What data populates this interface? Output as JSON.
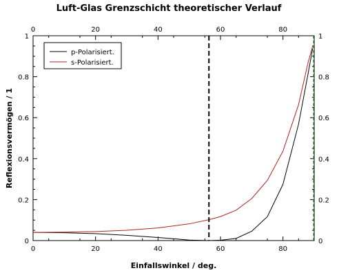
{
  "chart_data": {
    "type": "line",
    "title": "Luft-Glas Grenzschicht theoretischer Verlauf",
    "xlabel": "Einfallswinkel / deg.",
    "ylabel": "Reflexionsvermögen / 1",
    "xlim": [
      0,
      90
    ],
    "ylim": [
      0,
      1
    ],
    "x_ticks": [
      "0",
      "20",
      "40",
      "60",
      "80"
    ],
    "x_tick_values": [
      0,
      20,
      40,
      60,
      80
    ],
    "y_ticks": [
      "0",
      "0.2",
      "0.4",
      "0.6",
      "0.8",
      "1"
    ],
    "y_tick_values": [
      0,
      0.2,
      0.4,
      0.6,
      0.8,
      1
    ],
    "grid": false,
    "legend_position": "top-left",
    "x": [
      0,
      10,
      20,
      30,
      40,
      50,
      56.3,
      60,
      65,
      70,
      75,
      80,
      85,
      88,
      89.5
    ],
    "series": [
      {
        "name": "p-Polarisiert.",
        "color": "#000000",
        "values": [
          0.04,
          0.0383,
          0.0338,
          0.0254,
          0.0151,
          0.0027,
          0.0,
          0.0017,
          0.0105,
          0.0454,
          0.1167,
          0.2747,
          0.569,
          0.8113,
          0.937
        ]
      },
      {
        "name": "s-Polarisiert.",
        "color": "#b02020",
        "values": [
          0.04,
          0.0409,
          0.0442,
          0.0505,
          0.0616,
          0.0816,
          0.1018,
          0.1171,
          0.1483,
          0.2051,
          0.2938,
          0.4365,
          0.6637,
          0.8664,
          0.95
        ]
      }
    ],
    "brewster_angle": 56.3,
    "vertical_marker_x": 90,
    "colors": {
      "brewster_line": "#000000",
      "marker_line": "#2a9a2a"
    }
  }
}
